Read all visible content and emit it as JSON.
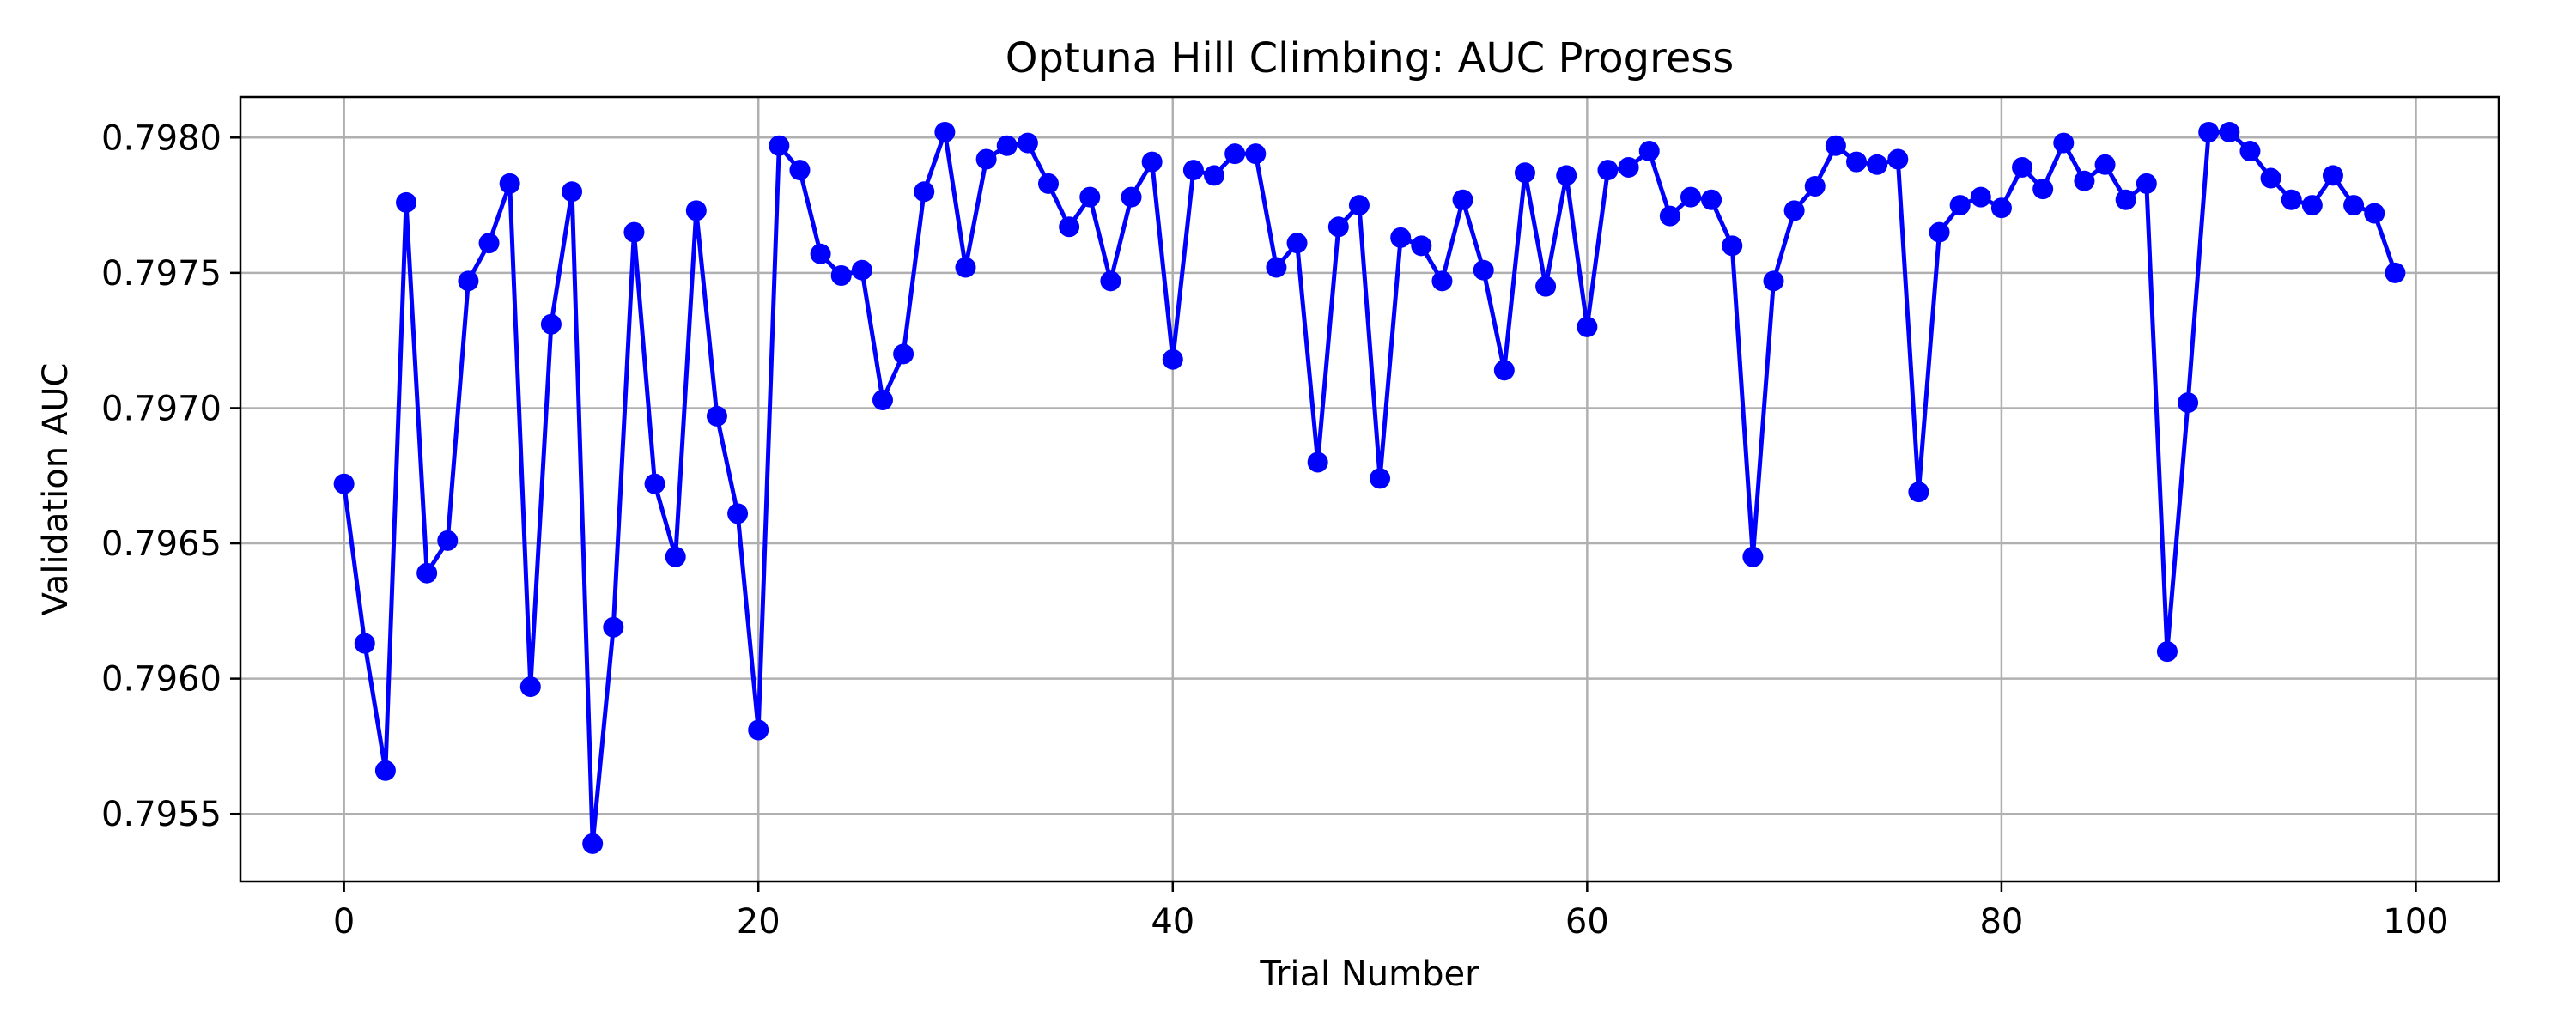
{
  "chart_data": {
    "type": "line",
    "title": "Optuna Hill Climbing: AUC Progress",
    "xlabel": "Trial Number",
    "ylabel": "Validation AUC",
    "xlim": [
      -5,
      104
    ],
    "ylim": [
      0.79525,
      0.79815
    ],
    "xticks": [
      0,
      20,
      40,
      60,
      80,
      100
    ],
    "yticks": [
      0.7955,
      0.796,
      0.7965,
      0.797,
      0.7975,
      0.798
    ],
    "ytick_labels": [
      "0.7955",
      "0.7960",
      "0.7965",
      "0.7970",
      "0.7975",
      "0.7980"
    ],
    "grid": true,
    "legend": "none",
    "series": [
      {
        "color": "#0000ff",
        "marker": "circle",
        "x": [
          0,
          1,
          2,
          3,
          4,
          5,
          6,
          7,
          8,
          9,
          10,
          11,
          12,
          13,
          14,
          15,
          16,
          17,
          18,
          19,
          20,
          21,
          22,
          23,
          24,
          25,
          26,
          27,
          28,
          29,
          30,
          31,
          32,
          33,
          34,
          35,
          36,
          37,
          38,
          39,
          40,
          41,
          42,
          43,
          44,
          45,
          46,
          47,
          48,
          49,
          50,
          51,
          52,
          53,
          54,
          55,
          56,
          57,
          58,
          59,
          60,
          61,
          62,
          63,
          64,
          65,
          66,
          67,
          68,
          69,
          70,
          71,
          72,
          73,
          74,
          75,
          76,
          77,
          78,
          79,
          80,
          81,
          82,
          83,
          84,
          85,
          86,
          87,
          88,
          89,
          90,
          91,
          92,
          93,
          94,
          95,
          96,
          97,
          98,
          99
        ],
        "y": [
          0.79672,
          0.79613,
          0.79566,
          0.79776,
          0.79639,
          0.79651,
          0.79747,
          0.79761,
          0.79783,
          0.79597,
          0.79731,
          0.7978,
          0.79539,
          0.79619,
          0.79765,
          0.79672,
          0.79645,
          0.79773,
          0.79697,
          0.79661,
          0.79581,
          0.79797,
          0.79788,
          0.79757,
          0.79749,
          0.79751,
          0.79703,
          0.7972,
          0.7978,
          0.79802,
          0.79752,
          0.79792,
          0.79797,
          0.79798,
          0.79783,
          0.79767,
          0.79778,
          0.79747,
          0.79778,
          0.79791,
          0.79718,
          0.79788,
          0.79786,
          0.79794,
          0.79794,
          0.79752,
          0.79761,
          0.7968,
          0.79767,
          0.79775,
          0.79674,
          0.79763,
          0.7976,
          0.79747,
          0.79777,
          0.79751,
          0.79714,
          0.79787,
          0.79745,
          0.79786,
          0.7973,
          0.79788,
          0.79789,
          0.79795,
          0.79771,
          0.79778,
          0.79777,
          0.7976,
          0.79645,
          0.79747,
          0.79773,
          0.79782,
          0.79797,
          0.79791,
          0.7979,
          0.79792,
          0.79669,
          0.79765,
          0.79775,
          0.79778,
          0.79774,
          0.79789,
          0.79781,
          0.79798,
          0.79784,
          0.7979,
          0.79777,
          0.79783,
          0.7961,
          0.79702,
          0.79802,
          0.79802,
          0.79795,
          0.79785,
          0.79777,
          0.79775,
          0.79786,
          0.79775,
          0.79772,
          0.7975
        ]
      }
    ]
  }
}
